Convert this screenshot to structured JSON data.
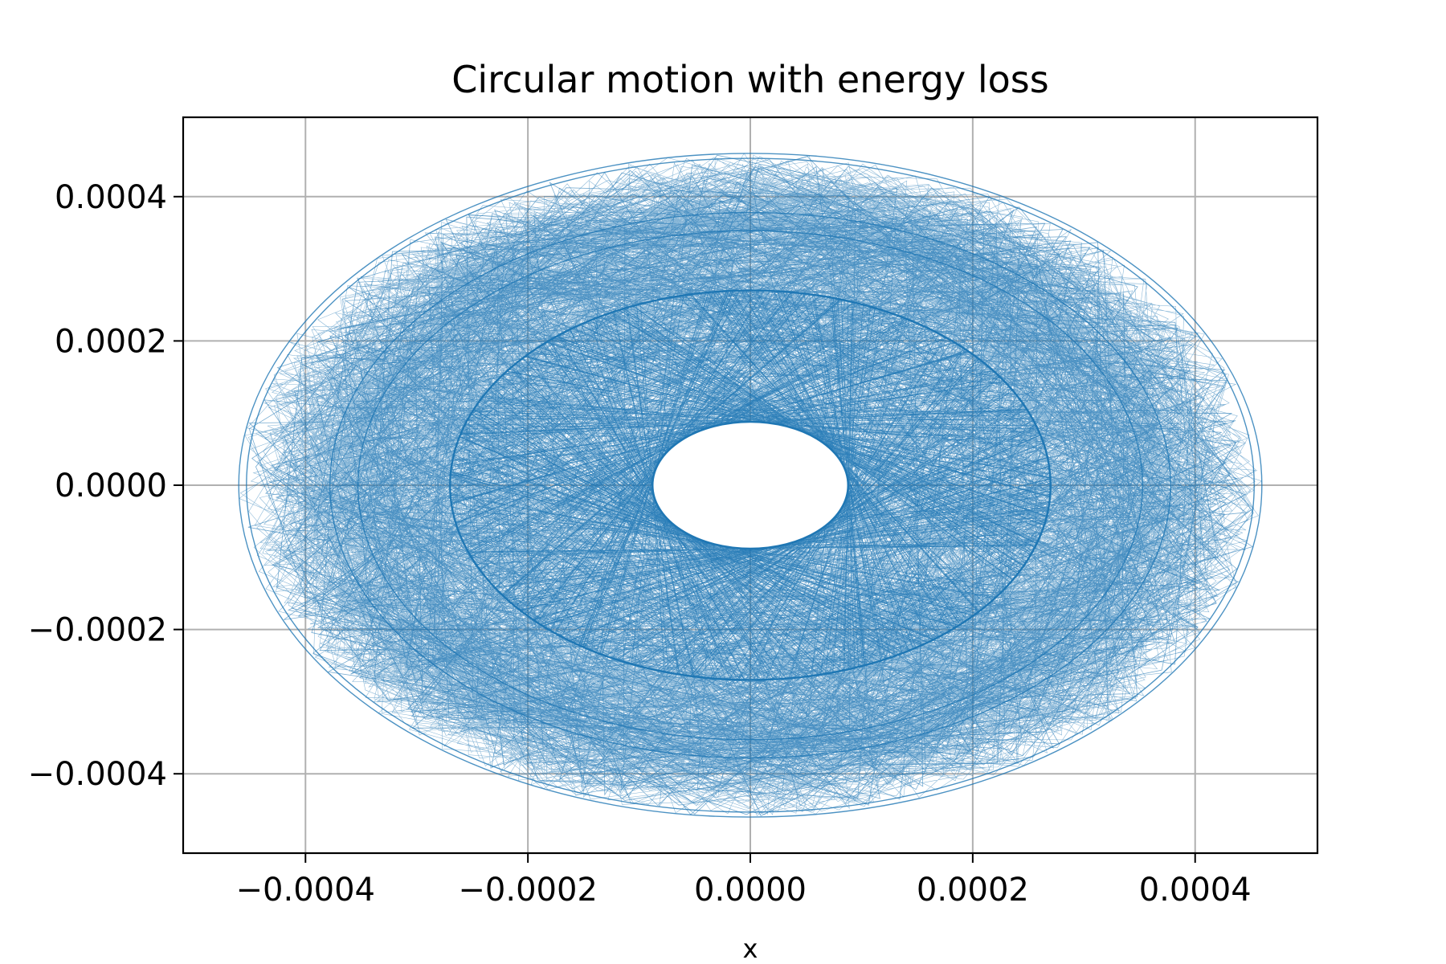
{
  "chart_data": {
    "type": "line",
    "title": "Circular motion with energy loss",
    "xlabel": "x",
    "ylabel": "",
    "xlim": [
      -0.00051,
      0.00051
    ],
    "ylim": [
      -0.00051,
      0.00051
    ],
    "grid": true,
    "xticks": [
      -0.0004,
      -0.0002,
      0.0,
      0.0002,
      0.0004
    ],
    "yticks": [
      -0.0004,
      -0.0002,
      0.0,
      0.0002,
      0.0004
    ],
    "xtick_labels": [
      "−0.0004",
      "−0.0002",
      "0.0000",
      "0.0002",
      "0.0004"
    ],
    "ytick_labels": [
      "−0.0004",
      "−0.0002",
      "0.0000",
      "0.0002",
      "0.0004"
    ],
    "series": [
      {
        "color": "#1f77b4",
        "trajectory_radii": {
          "outer_band": [
            0.00036,
            0.00046
          ],
          "middle_ring": 0.00027,
          "inner_hole": 8.8e-05
        }
      }
    ]
  }
}
